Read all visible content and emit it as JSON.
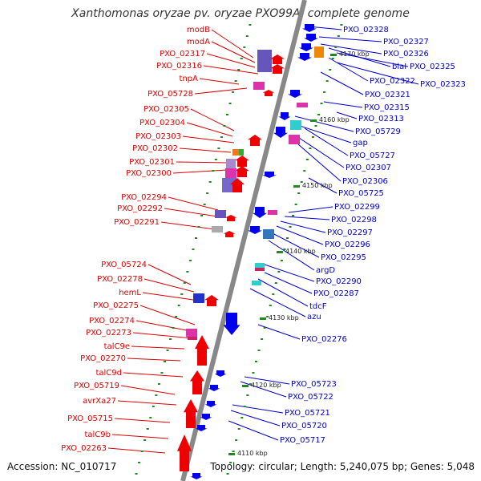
{
  "title": "Xanthomonas oryzae pv. oryzae PXO99A, complete genome",
  "footer": {
    "accession": "Accession: NC_010717",
    "summary": "Topology: circular; Length: 5,240,075 bp; Genes: 5,048"
  },
  "colors": {
    "left_label": "#dd0000",
    "right_label": "#0000cc",
    "left_gene": "#ee0000",
    "right_gene": "#0000ee",
    "backbone": "#888888",
    "tick": "#228822"
  },
  "kbp_marks": [
    "4110 kbp",
    "4120 kbp",
    "4130 kbp",
    "4140 kbp",
    "4150 kbp",
    "4160 kbp",
    "4170 kbp"
  ],
  "left_labels": [
    "modB",
    "modA",
    "PXO_02317",
    "PXO_02316",
    "tnpA",
    "PXO_05728",
    "PXO_02305",
    "PXO_02304",
    "PXO_02303",
    "PXO_02302",
    "PXO_02301",
    "PXO_02300",
    "PXO_02294",
    "PXO_02292",
    "PXO_02291",
    "PXO_05724",
    "PXO_02278",
    "hemL",
    "PXO_02275",
    "PXO_02274",
    "PXO_02273",
    "talC9e",
    "PXO_02270",
    "talC9d",
    "PXO_05719",
    "avrXa27",
    "PXO_05715",
    "talC9b",
    "PXO_02263"
  ],
  "right_labels": [
    "PXO_02328",
    "PXO_02327",
    "PXO_02326",
    "blaI",
    "PXO_02325",
    "PXO_02322",
    "PXO_02323",
    "PXO_02321",
    "PXO_02315",
    "PXO_02313",
    "PXO_05729",
    "gap",
    "PXO_05727",
    "PXO_02307",
    "PXO_02306",
    "PXO_05725",
    "PXO_02299",
    "PXO_02298",
    "PXO_02297",
    "PXO_02296",
    "PXO_02295",
    "argD",
    "PXO_02290",
    "PXO_02287",
    "tdcF",
    "azu",
    "PXO_02276",
    "PXO_05723",
    "PXO_05722",
    "PXO_05721",
    "PXO_05720",
    "PXO_05717"
  ]
}
